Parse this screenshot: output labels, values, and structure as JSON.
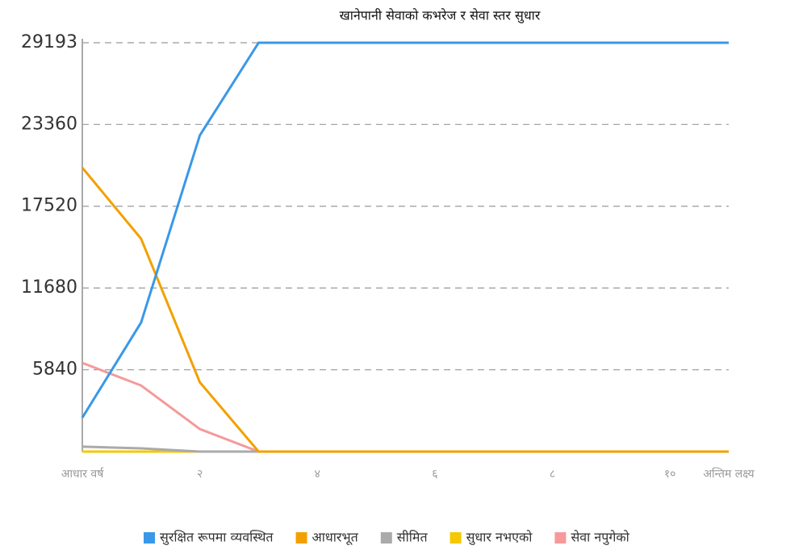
{
  "chart_data": {
    "type": "line",
    "title": "खानेपानी सेवाको कभरेज र सेवा स्तर सुधार",
    "categories": [
      "आधार वर्ष",
      null,
      "२",
      null,
      "४",
      null,
      "६",
      null,
      "८",
      null,
      "१०",
      "अन्तिम लक्ष्य"
    ],
    "series": [
      {
        "name": "सुरक्षित रूपमा व्यवस्थित",
        "color": "#3a98e8",
        "values": [
          2420,
          9215,
          22580,
          29193,
          29193,
          29193,
          29193,
          29193,
          29193,
          29193,
          29193,
          29193
        ]
      },
      {
        "name": "आधारभूत",
        "color": "#f2a000",
        "values": [
          20270,
          15200,
          4950,
          0,
          0,
          0,
          0,
          0,
          0,
          0,
          0,
          0
        ]
      },
      {
        "name": "सीमित",
        "color": "#aaaaaa",
        "values": [
          350,
          230,
          0,
          0,
          0,
          0,
          0,
          0,
          0,
          0,
          0,
          0
        ]
      },
      {
        "name": "सुधार नभएको",
        "color": "#f5c800",
        "values": [
          0,
          0,
          0,
          0,
          0,
          0,
          0,
          0,
          0,
          0,
          0,
          0
        ]
      },
      {
        "name": "सेवा नपुगेको",
        "color": "#f59a9a",
        "values": [
          6335,
          4720,
          1610,
          0,
          0,
          0,
          0,
          0,
          0,
          0,
          0,
          0
        ]
      }
    ],
    "ylim": [
      0,
      29193
    ],
    "yticks": [
      5840,
      11680,
      17520,
      23360,
      29193
    ],
    "grid": true
  }
}
